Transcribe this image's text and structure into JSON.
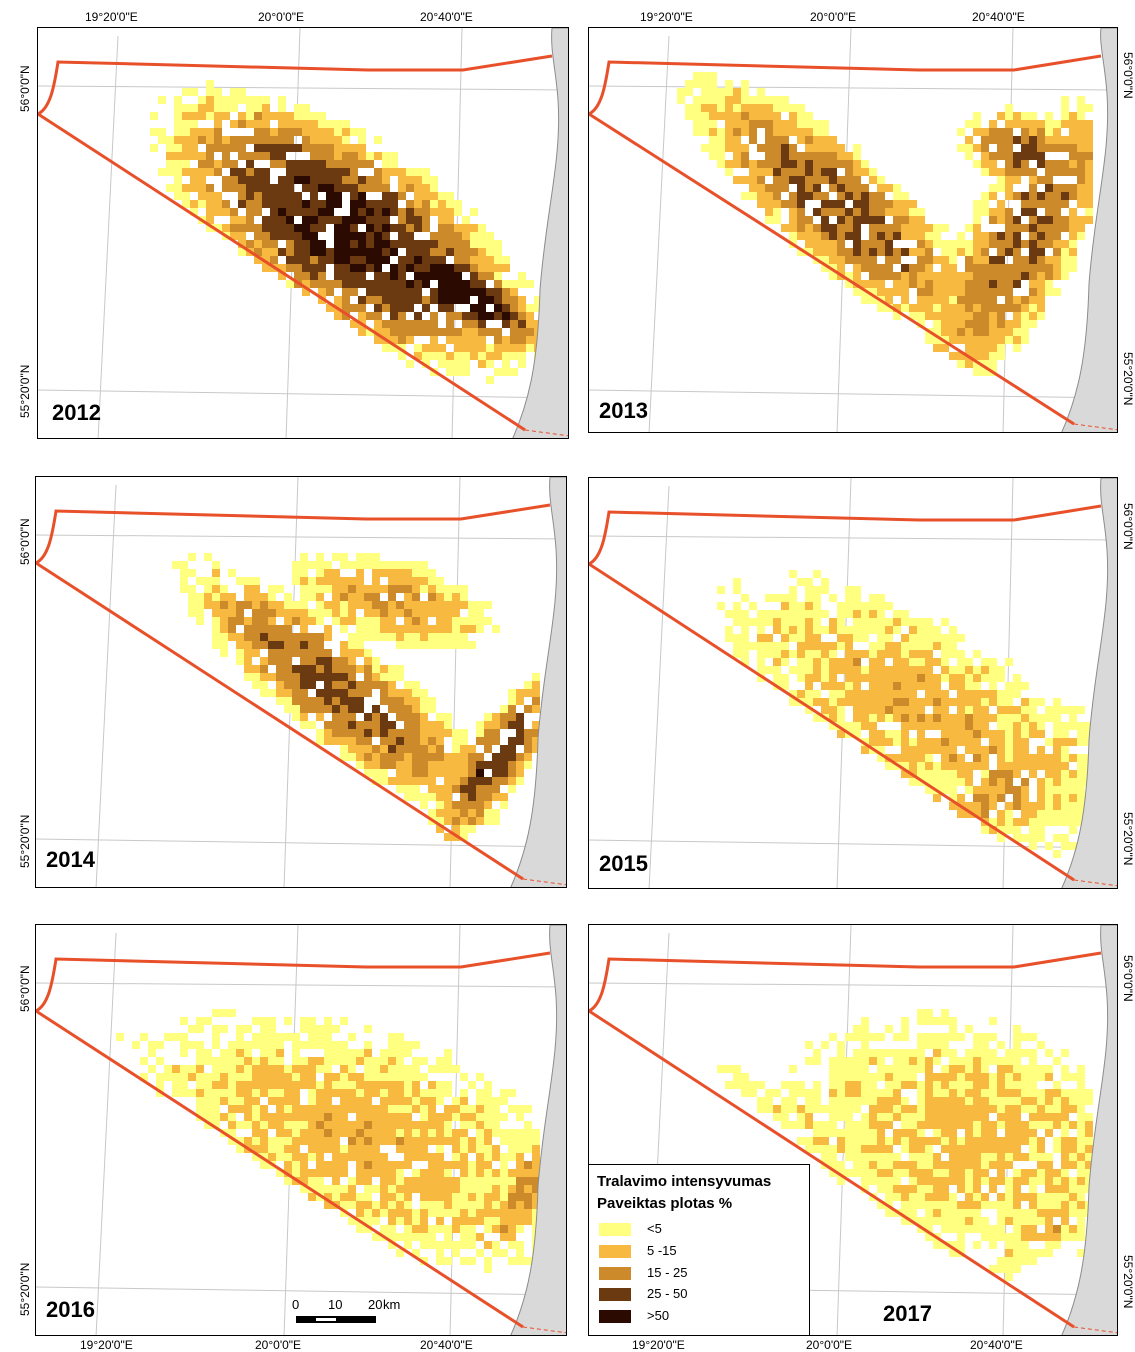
{
  "panels": [
    {
      "year": "2012",
      "hotspot": "elongated dense band oriented NW-SE",
      "peak_class": ">50"
    },
    {
      "year": "2013",
      "hotspot": "two bands, north-east lobe and central diagonal",
      "peak_class": ">50"
    },
    {
      "year": "2014",
      "hotspot": "diagonal band with southern dense patch",
      "peak_class": ">50"
    },
    {
      "year": "2015",
      "hotspot": "diffuse, mostly low intensity",
      "peak_class": "15 - 25"
    },
    {
      "year": "2016",
      "hotspot": "diffuse, mostly low intensity",
      "peak_class": "25 - 50"
    },
    {
      "year": "2017",
      "hotspot": "diffuse, mostly low intensity",
      "peak_class": "15 - 25"
    }
  ],
  "axes": {
    "lon_labels": [
      "19°20'0\"E",
      "20°0'0\"E",
      "20°40'0\"E"
    ],
    "lat_labels": [
      "56°0'0\"N",
      "55°20'0\"N"
    ]
  },
  "legend": {
    "title": "Tralavimo intensyvumas",
    "subtitle": "Paveiktas plotas %",
    "classes": [
      {
        "label": "<5",
        "color": "#ffff80"
      },
      {
        "label": "5 -15",
        "color": "#f7b93f"
      },
      {
        "label": "15 - 25",
        "color": "#cc8a2b"
      },
      {
        "label": "25 - 50",
        "color": "#6b3a10"
      },
      {
        "label": ">50",
        "color": "#2b0a02"
      }
    ]
  },
  "scale_bar": {
    "labels": [
      "0",
      "10",
      "20"
    ],
    "unit": "km"
  },
  "colors": {
    "boundary": "#e8502a",
    "coast_fill": "#d9d9d9",
    "coast_stroke": "#8c8c8c",
    "graticule": "#c8c8c8"
  }
}
